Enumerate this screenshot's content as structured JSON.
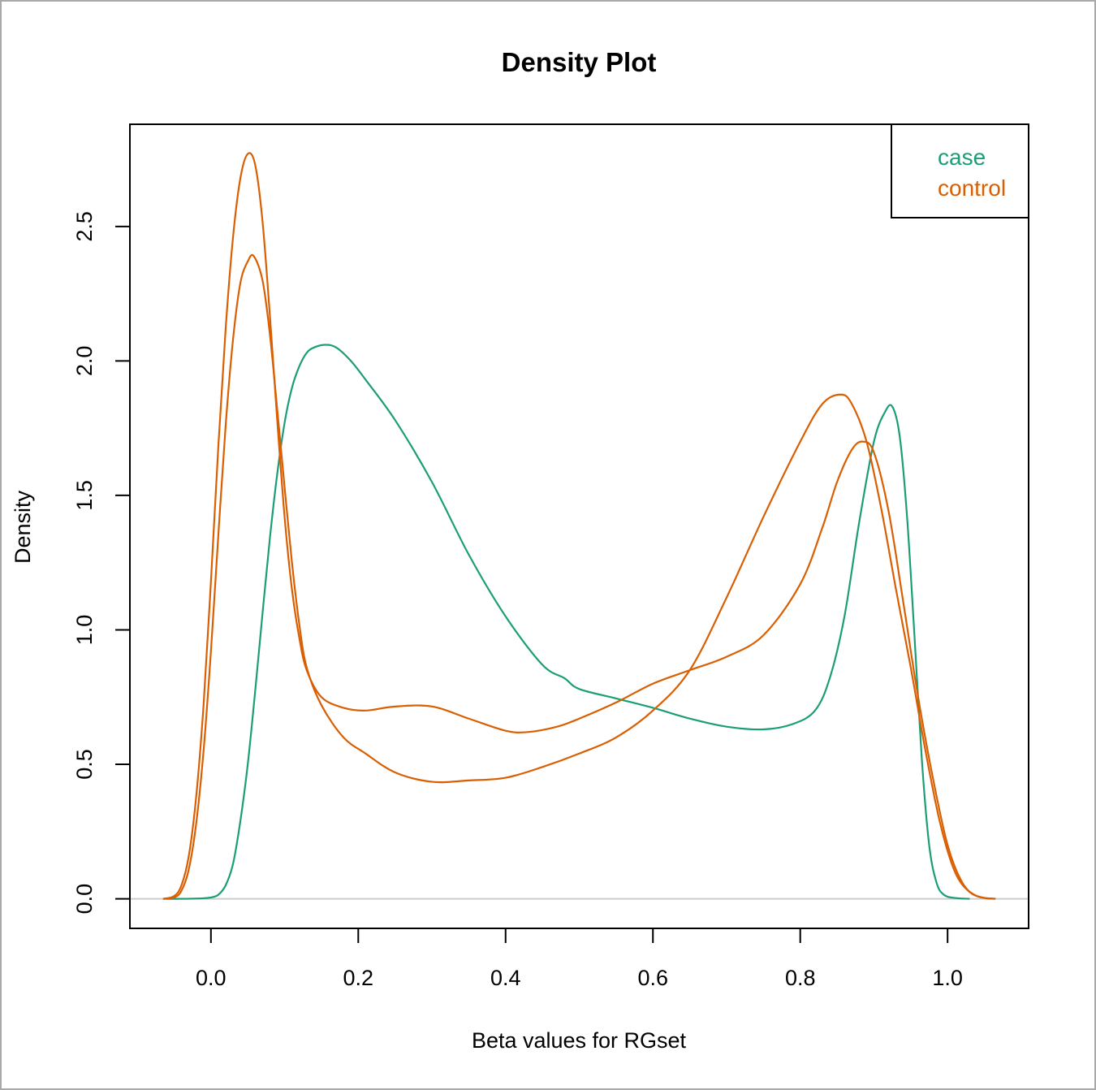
{
  "chart_data": {
    "type": "line",
    "title": "Density Plot",
    "xlabel": "Beta values for RGset",
    "ylabel": "Density",
    "xlim": [
      -0.11,
      1.11
    ],
    "ylim": [
      -0.11,
      2.88
    ],
    "x_ticks": [
      0.0,
      0.2,
      0.4,
      0.6,
      0.8,
      1.0
    ],
    "x_tick_labels": [
      "0.0",
      "0.2",
      "0.4",
      "0.6",
      "0.8",
      "1.0"
    ],
    "y_ticks": [
      0.0,
      0.5,
      1.0,
      1.5,
      2.0,
      2.5
    ],
    "y_tick_labels": [
      "0.0",
      "0.5",
      "1.0",
      "1.5",
      "2.0",
      "2.5"
    ],
    "baseline": 0,
    "baseline_color": "#cccccc",
    "legend": {
      "position": "top-right",
      "entries": [
        {
          "label": "case",
          "color": "#1b9e77"
        },
        {
          "label": "control",
          "color": "#d95f02"
        }
      ]
    },
    "series": [
      {
        "group": "case",
        "color": "#1b9e77",
        "points": [
          [
            -0.065,
            0.0
          ],
          [
            -0.04,
            0.0
          ],
          [
            -0.01,
            0.002
          ],
          [
            0.0,
            0.005
          ],
          [
            0.01,
            0.015
          ],
          [
            0.02,
            0.05
          ],
          [
            0.03,
            0.13
          ],
          [
            0.04,
            0.29
          ],
          [
            0.05,
            0.5
          ],
          [
            0.06,
            0.77
          ],
          [
            0.07,
            1.06
          ],
          [
            0.08,
            1.34
          ],
          [
            0.09,
            1.58
          ],
          [
            0.1,
            1.77
          ],
          [
            0.11,
            1.9
          ],
          [
            0.12,
            1.98
          ],
          [
            0.13,
            2.03
          ],
          [
            0.14,
            2.05
          ],
          [
            0.155,
            2.06
          ],
          [
            0.17,
            2.05
          ],
          [
            0.19,
            2.0
          ],
          [
            0.21,
            1.93
          ],
          [
            0.25,
            1.78
          ],
          [
            0.3,
            1.55
          ],
          [
            0.35,
            1.28
          ],
          [
            0.4,
            1.05
          ],
          [
            0.45,
            0.87
          ],
          [
            0.48,
            0.82
          ],
          [
            0.5,
            0.78
          ],
          [
            0.55,
            0.745
          ],
          [
            0.6,
            0.71
          ],
          [
            0.65,
            0.67
          ],
          [
            0.7,
            0.64
          ],
          [
            0.75,
            0.63
          ],
          [
            0.79,
            0.65
          ],
          [
            0.82,
            0.7
          ],
          [
            0.84,
            0.82
          ],
          [
            0.86,
            1.05
          ],
          [
            0.88,
            1.4
          ],
          [
            0.9,
            1.7
          ],
          [
            0.915,
            1.81
          ],
          [
            0.925,
            1.83
          ],
          [
            0.935,
            1.72
          ],
          [
            0.945,
            1.42
          ],
          [
            0.955,
            0.98
          ],
          [
            0.965,
            0.52
          ],
          [
            0.975,
            0.2
          ],
          [
            0.985,
            0.06
          ],
          [
            0.995,
            0.015
          ],
          [
            1.01,
            0.003
          ],
          [
            1.03,
            0.0
          ]
        ]
      },
      {
        "group": "control",
        "color": "#d95f02",
        "points": [
          [
            -0.065,
            0.0
          ],
          [
            -0.05,
            0.01
          ],
          [
            -0.04,
            0.05
          ],
          [
            -0.03,
            0.16
          ],
          [
            -0.02,
            0.38
          ],
          [
            -0.01,
            0.72
          ],
          [
            0.0,
            1.18
          ],
          [
            0.01,
            1.68
          ],
          [
            0.02,
            2.12
          ],
          [
            0.03,
            2.46
          ],
          [
            0.04,
            2.68
          ],
          [
            0.05,
            2.77
          ],
          [
            0.06,
            2.73
          ],
          [
            0.07,
            2.52
          ],
          [
            0.08,
            2.17
          ],
          [
            0.09,
            1.78
          ],
          [
            0.1,
            1.42
          ],
          [
            0.11,
            1.15
          ],
          [
            0.12,
            0.97
          ],
          [
            0.13,
            0.85
          ],
          [
            0.15,
            0.75
          ],
          [
            0.18,
            0.71
          ],
          [
            0.21,
            0.7
          ],
          [
            0.25,
            0.715
          ],
          [
            0.3,
            0.715
          ],
          [
            0.35,
            0.67
          ],
          [
            0.4,
            0.625
          ],
          [
            0.43,
            0.62
          ],
          [
            0.47,
            0.64
          ],
          [
            0.5,
            0.67
          ],
          [
            0.55,
            0.73
          ],
          [
            0.6,
            0.8
          ],
          [
            0.65,
            0.85
          ],
          [
            0.7,
            0.9
          ],
          [
            0.75,
            0.98
          ],
          [
            0.8,
            1.17
          ],
          [
            0.83,
            1.38
          ],
          [
            0.85,
            1.55
          ],
          [
            0.87,
            1.67
          ],
          [
            0.885,
            1.7
          ],
          [
            0.9,
            1.66
          ],
          [
            0.92,
            1.44
          ],
          [
            0.94,
            1.1
          ],
          [
            0.96,
            0.75
          ],
          [
            0.98,
            0.45
          ],
          [
            1.0,
            0.2
          ],
          [
            1.02,
            0.06
          ],
          [
            1.04,
            0.01
          ],
          [
            1.065,
            0.0
          ]
        ]
      },
      {
        "group": "control",
        "color": "#d95f02",
        "points": [
          [
            -0.065,
            0.0
          ],
          [
            -0.05,
            0.005
          ],
          [
            -0.04,
            0.03
          ],
          [
            -0.03,
            0.11
          ],
          [
            -0.02,
            0.28
          ],
          [
            -0.01,
            0.55
          ],
          [
            0.0,
            0.92
          ],
          [
            0.01,
            1.35
          ],
          [
            0.02,
            1.76
          ],
          [
            0.03,
            2.08
          ],
          [
            0.04,
            2.29
          ],
          [
            0.05,
            2.37
          ],
          [
            0.058,
            2.39
          ],
          [
            0.07,
            2.3
          ],
          [
            0.08,
            2.1
          ],
          [
            0.09,
            1.82
          ],
          [
            0.1,
            1.53
          ],
          [
            0.11,
            1.25
          ],
          [
            0.12,
            1.02
          ],
          [
            0.13,
            0.86
          ],
          [
            0.15,
            0.72
          ],
          [
            0.18,
            0.6
          ],
          [
            0.21,
            0.54
          ],
          [
            0.25,
            0.47
          ],
          [
            0.3,
            0.435
          ],
          [
            0.35,
            0.44
          ],
          [
            0.4,
            0.45
          ],
          [
            0.45,
            0.49
          ],
          [
            0.5,
            0.54
          ],
          [
            0.55,
            0.6
          ],
          [
            0.6,
            0.7
          ],
          [
            0.65,
            0.85
          ],
          [
            0.7,
            1.12
          ],
          [
            0.75,
            1.42
          ],
          [
            0.8,
            1.7
          ],
          [
            0.83,
            1.84
          ],
          [
            0.855,
            1.875
          ],
          [
            0.87,
            1.84
          ],
          [
            0.89,
            1.7
          ],
          [
            0.91,
            1.45
          ],
          [
            0.93,
            1.15
          ],
          [
            0.95,
            0.86
          ],
          [
            0.97,
            0.55
          ],
          [
            0.99,
            0.28
          ],
          [
            1.01,
            0.1
          ],
          [
            1.03,
            0.025
          ],
          [
            1.05,
            0.003
          ],
          [
            1.065,
            0.0
          ]
        ]
      }
    ]
  }
}
